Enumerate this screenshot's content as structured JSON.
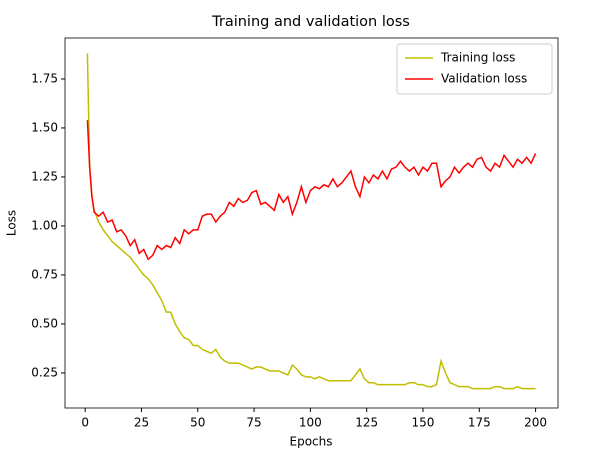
{
  "chart_data": {
    "type": "line",
    "title": "Training and validation loss",
    "x_label": "Epochs",
    "y_label": "Loss",
    "x": [
      1,
      2,
      3,
      4,
      6,
      8,
      10,
      12,
      14,
      16,
      18,
      20,
      22,
      24,
      26,
      28,
      30,
      32,
      34,
      36,
      38,
      40,
      42,
      44,
      46,
      48,
      50,
      52,
      54,
      56,
      58,
      60,
      62,
      64,
      66,
      68,
      70,
      72,
      74,
      76,
      78,
      80,
      82,
      84,
      86,
      88,
      90,
      92,
      94,
      96,
      98,
      100,
      102,
      104,
      106,
      108,
      110,
      112,
      114,
      116,
      118,
      120,
      122,
      124,
      126,
      128,
      130,
      132,
      134,
      136,
      138,
      140,
      142,
      144,
      146,
      148,
      150,
      152,
      154,
      156,
      158,
      160,
      162,
      164,
      166,
      168,
      170,
      172,
      174,
      176,
      178,
      180,
      182,
      184,
      186,
      188,
      190,
      192,
      194,
      196,
      198,
      200
    ],
    "series": [
      {
        "name": "Training loss",
        "color": "#bfbf00",
        "values": [
          1.88,
          1.3,
          1.15,
          1.08,
          1.02,
          0.98,
          0.95,
          0.92,
          0.9,
          0.88,
          0.86,
          0.84,
          0.81,
          0.78,
          0.75,
          0.73,
          0.7,
          0.66,
          0.62,
          0.56,
          0.56,
          0.5,
          0.46,
          0.43,
          0.42,
          0.39,
          0.39,
          0.37,
          0.36,
          0.35,
          0.37,
          0.33,
          0.31,
          0.3,
          0.3,
          0.3,
          0.29,
          0.28,
          0.27,
          0.28,
          0.28,
          0.27,
          0.26,
          0.26,
          0.26,
          0.25,
          0.24,
          0.29,
          0.27,
          0.24,
          0.23,
          0.23,
          0.22,
          0.23,
          0.22,
          0.21,
          0.21,
          0.21,
          0.21,
          0.21,
          0.21,
          0.24,
          0.27,
          0.22,
          0.2,
          0.2,
          0.19,
          0.19,
          0.19,
          0.19,
          0.19,
          0.19,
          0.19,
          0.2,
          0.2,
          0.19,
          0.19,
          0.18,
          0.18,
          0.19,
          0.31,
          0.25,
          0.2,
          0.19,
          0.18,
          0.18,
          0.18,
          0.17,
          0.17,
          0.17,
          0.17,
          0.17,
          0.18,
          0.18,
          0.17,
          0.17,
          0.17,
          0.18,
          0.17,
          0.17,
          0.17,
          0.17
        ]
      },
      {
        "name": "Validation loss",
        "color": "#ff0000",
        "values": [
          1.54,
          1.3,
          1.15,
          1.07,
          1.05,
          1.07,
          1.02,
          1.03,
          0.97,
          0.98,
          0.95,
          0.9,
          0.93,
          0.86,
          0.88,
          0.83,
          0.85,
          0.9,
          0.88,
          0.9,
          0.89,
          0.94,
          0.91,
          0.98,
          0.96,
          0.98,
          0.98,
          1.05,
          1.06,
          1.06,
          1.02,
          1.05,
          1.07,
          1.12,
          1.1,
          1.14,
          1.12,
          1.13,
          1.17,
          1.18,
          1.11,
          1.12,
          1.1,
          1.08,
          1.16,
          1.12,
          1.15,
          1.06,
          1.12,
          1.2,
          1.12,
          1.18,
          1.2,
          1.19,
          1.21,
          1.2,
          1.24,
          1.2,
          1.22,
          1.25,
          1.28,
          1.2,
          1.15,
          1.25,
          1.22,
          1.26,
          1.24,
          1.28,
          1.24,
          1.29,
          1.3,
          1.33,
          1.3,
          1.28,
          1.3,
          1.26,
          1.3,
          1.28,
          1.32,
          1.32,
          1.2,
          1.23,
          1.25,
          1.3,
          1.27,
          1.3,
          1.32,
          1.3,
          1.34,
          1.35,
          1.3,
          1.28,
          1.32,
          1.3,
          1.36,
          1.33,
          1.3,
          1.34,
          1.32,
          1.35,
          1.32,
          1.37
        ]
      }
    ],
    "xlim": [
      -8.95,
      209.95
    ],
    "ylim": [
      0.071,
      1.959
    ],
    "xticks": [
      0,
      25,
      50,
      75,
      100,
      125,
      150,
      175,
      200
    ],
    "yticks": [
      0.25,
      0.5,
      0.75,
      1.0,
      1.25,
      1.5,
      1.75
    ],
    "legend": "upper right",
    "grid": false
  }
}
